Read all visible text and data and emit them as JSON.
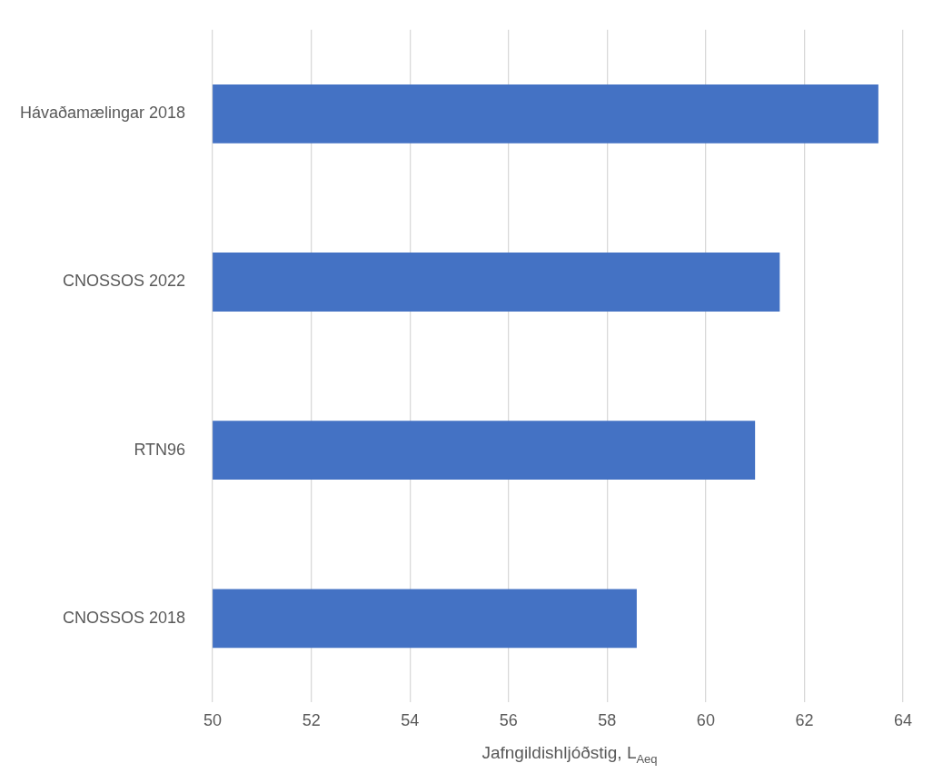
{
  "chart_data": {
    "type": "bar",
    "orientation": "horizontal",
    "xlabel": "Jafngildishljóðstig, L$_{Aeq}$",
    "categories": [
      "Hávaðamælingar 2018",
      "CNOSSOS 2022",
      "RTN96",
      "CNOSSOS 2018"
    ],
    "values": [
      63.5,
      61.5,
      61.0,
      58.6
    ],
    "color": "#4472c4",
    "xlim": [
      50,
      64
    ],
    "xticks": [
      50,
      52,
      54,
      56,
      58,
      60,
      62,
      64
    ],
    "grid": "x"
  }
}
